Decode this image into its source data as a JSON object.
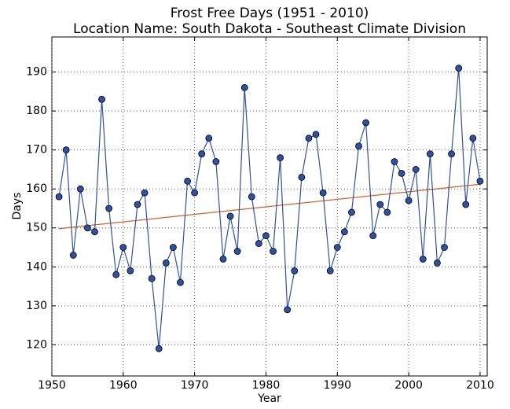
{
  "chart_data": {
    "type": "line",
    "title": "Frost Free Days (1951 - 2010)",
    "subtitle": "Location Name: South Dakota - Southeast Climate Division",
    "x_label": "Year",
    "y_label": "Days",
    "x": [
      1951,
      1952,
      1953,
      1954,
      1955,
      1956,
      1957,
      1958,
      1959,
      1960,
      1961,
      1962,
      1963,
      1964,
      1965,
      1966,
      1967,
      1968,
      1969,
      1970,
      1971,
      1972,
      1973,
      1974,
      1975,
      1976,
      1977,
      1978,
      1979,
      1980,
      1981,
      1982,
      1983,
      1984,
      1985,
      1986,
      1987,
      1988,
      1989,
      1990,
      1991,
      1992,
      1993,
      1994,
      1995,
      1996,
      1997,
      1998,
      1999,
      2000,
      2001,
      2002,
      2003,
      2004,
      2005,
      2006,
      2007,
      2008,
      2009,
      2010
    ],
    "values": [
      158,
      170,
      143,
      160,
      150,
      149,
      183,
      155,
      138,
      145,
      139,
      156,
      159,
      137,
      119,
      141,
      145,
      136,
      162,
      159,
      169,
      173,
      167,
      142,
      153,
      144,
      186,
      158,
      146,
      148,
      144,
      168,
      129,
      139,
      163,
      173,
      174,
      159,
      139,
      145,
      149,
      154,
      171,
      177,
      148,
      156,
      154,
      167,
      164,
      157,
      165,
      142,
      169,
      141,
      145,
      169,
      191,
      156,
      173,
      162
    ],
    "color": "#3050a0",
    "trend": {
      "x": [
        1951,
        2010
      ],
      "values": [
        149.8,
        161.2
      ],
      "color": "#d2622a"
    },
    "xlim": [
      1950,
      2011
    ],
    "ylim": [
      112,
      199
    ],
    "xticks": [
      1950,
      1960,
      1970,
      1980,
      1990,
      2000,
      2010
    ],
    "yticks": [
      120,
      130,
      140,
      150,
      160,
      170,
      180,
      190
    ],
    "grid": true
  }
}
